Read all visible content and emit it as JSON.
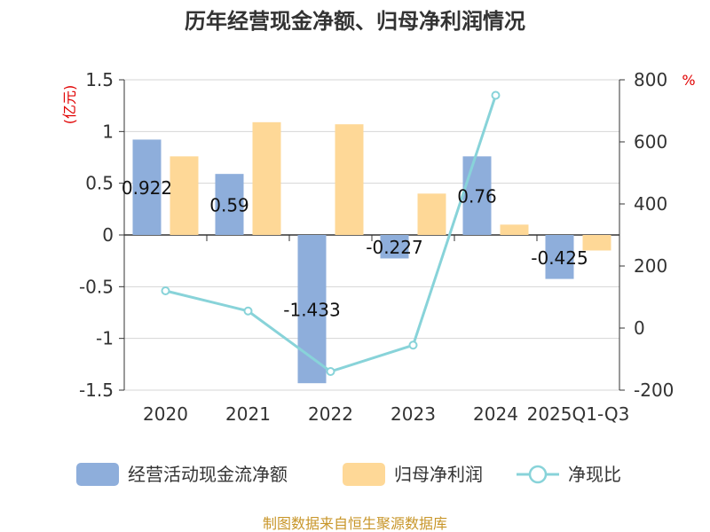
{
  "chart_data": {
    "type": "bar+line",
    "title": "历年经营现金净额、归母净利润情况",
    "categories": [
      "2020",
      "2021",
      "2022",
      "2023",
      "2024",
      "2025Q1-Q3"
    ],
    "series": [
      {
        "name": "经营活动现金流净额",
        "type": "bar",
        "axis": "left",
        "color": "#8eaedb",
        "values": [
          0.922,
          0.59,
          -1.433,
          -0.227,
          0.76,
          -0.425
        ],
        "labels": [
          "0.922",
          "0.59",
          "-1.433",
          "-0.227",
          "0.76",
          "-0.425"
        ]
      },
      {
        "name": "归母净利润",
        "type": "bar",
        "axis": "left",
        "color": "#fed897",
        "values": [
          0.76,
          1.09,
          1.07,
          0.4,
          0.1,
          -0.15
        ]
      },
      {
        "name": "净现比",
        "type": "line",
        "axis": "right",
        "color": "#88d3d9",
        "values": [
          120,
          55,
          -140,
          -55,
          750,
          null
        ]
      }
    ],
    "left_axis": {
      "unit": "(亿元)",
      "ylim": [
        -1.5,
        1.5
      ],
      "ticks": [
        1.5,
        1,
        0.5,
        0,
        -0.5,
        -1,
        -1.5
      ],
      "tick_labels": [
        "1.5",
        "1",
        "0.5",
        "0",
        "-0.5",
        "-1",
        "-1.5"
      ]
    },
    "right_axis": {
      "unit": "%",
      "ylim": [
        -200,
        800
      ],
      "ticks": [
        800,
        600,
        400,
        200,
        0,
        -200
      ],
      "tick_labels": [
        "800",
        "600",
        "400",
        "200",
        "0",
        "-200"
      ]
    },
    "grid": true,
    "legend_position": "bottom"
  },
  "source": "制图数据来自恒生聚源数据库"
}
